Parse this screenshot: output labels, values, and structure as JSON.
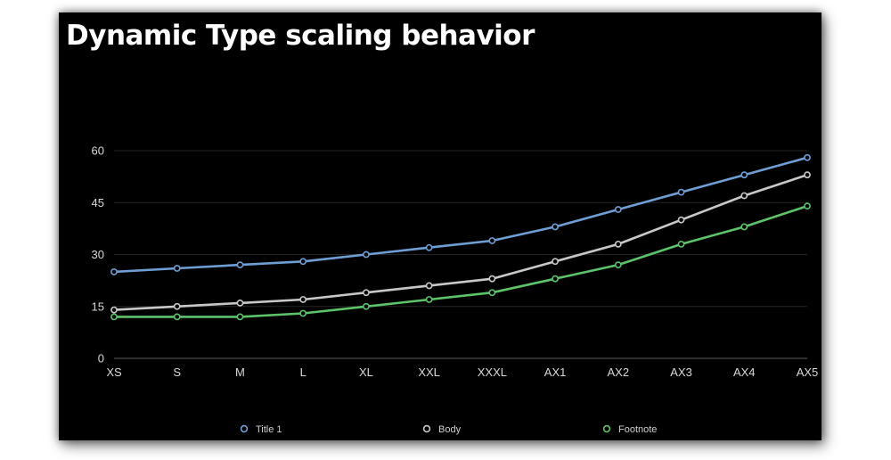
{
  "title": "Dynamic Type scaling behavior",
  "chart_data": {
    "type": "line",
    "title": "Dynamic Type scaling behavior",
    "xlabel": "",
    "ylabel": "",
    "categories": [
      "XS",
      "S",
      "M",
      "L",
      "XL",
      "XXL",
      "XXXL",
      "AX1",
      "AX2",
      "AX3",
      "AX4",
      "AX5"
    ],
    "ylim": [
      0,
      60
    ],
    "yticks": [
      0,
      15,
      30,
      45,
      60
    ],
    "grid": true,
    "legend_position": "bottom",
    "series": [
      {
        "name": "Title 1",
        "color": "#6f9ed4",
        "values": [
          25,
          26,
          27,
          28,
          30,
          32,
          34,
          38,
          43,
          48,
          53,
          58
        ]
      },
      {
        "name": "Body",
        "color": "#c8c8c8",
        "values": [
          14,
          15,
          16,
          17,
          19,
          21,
          23,
          28,
          33,
          40,
          47,
          53
        ]
      },
      {
        "name": "Footnote",
        "color": "#5cc36a",
        "values": [
          12,
          12,
          12,
          13,
          15,
          17,
          19,
          23,
          27,
          33,
          38,
          44
        ]
      }
    ]
  }
}
